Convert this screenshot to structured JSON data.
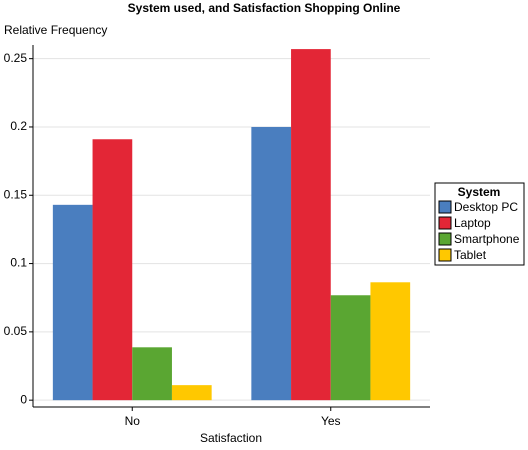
{
  "chart_data": {
    "type": "grouped-bar",
    "title": "System used, and Satisfaction Shopping Online",
    "y_label": "Relative Frequency",
    "x_label": "Satisfaction",
    "legend_title": "System",
    "legend": "right",
    "grid": true,
    "categories": [
      "No",
      "Yes"
    ],
    "series": [
      {
        "name": "Desktop PC",
        "color": "#4a7ebf",
        "values": [
          0.143,
          0.2
        ]
      },
      {
        "name": "Laptop",
        "color": "#e32636",
        "values": [
          0.191,
          0.257
        ]
      },
      {
        "name": "Smartphone",
        "color": "#5aa632",
        "values": [
          0.0387,
          0.0768
        ]
      },
      {
        "name": "Tablet",
        "color": "#ffc800",
        "values": [
          0.011,
          0.0863
        ]
      }
    ],
    "ylim": [
      -0.005,
      0.26
    ],
    "yticks": [
      0,
      0.05,
      0.1,
      0.15,
      0.2,
      0.25
    ]
  }
}
